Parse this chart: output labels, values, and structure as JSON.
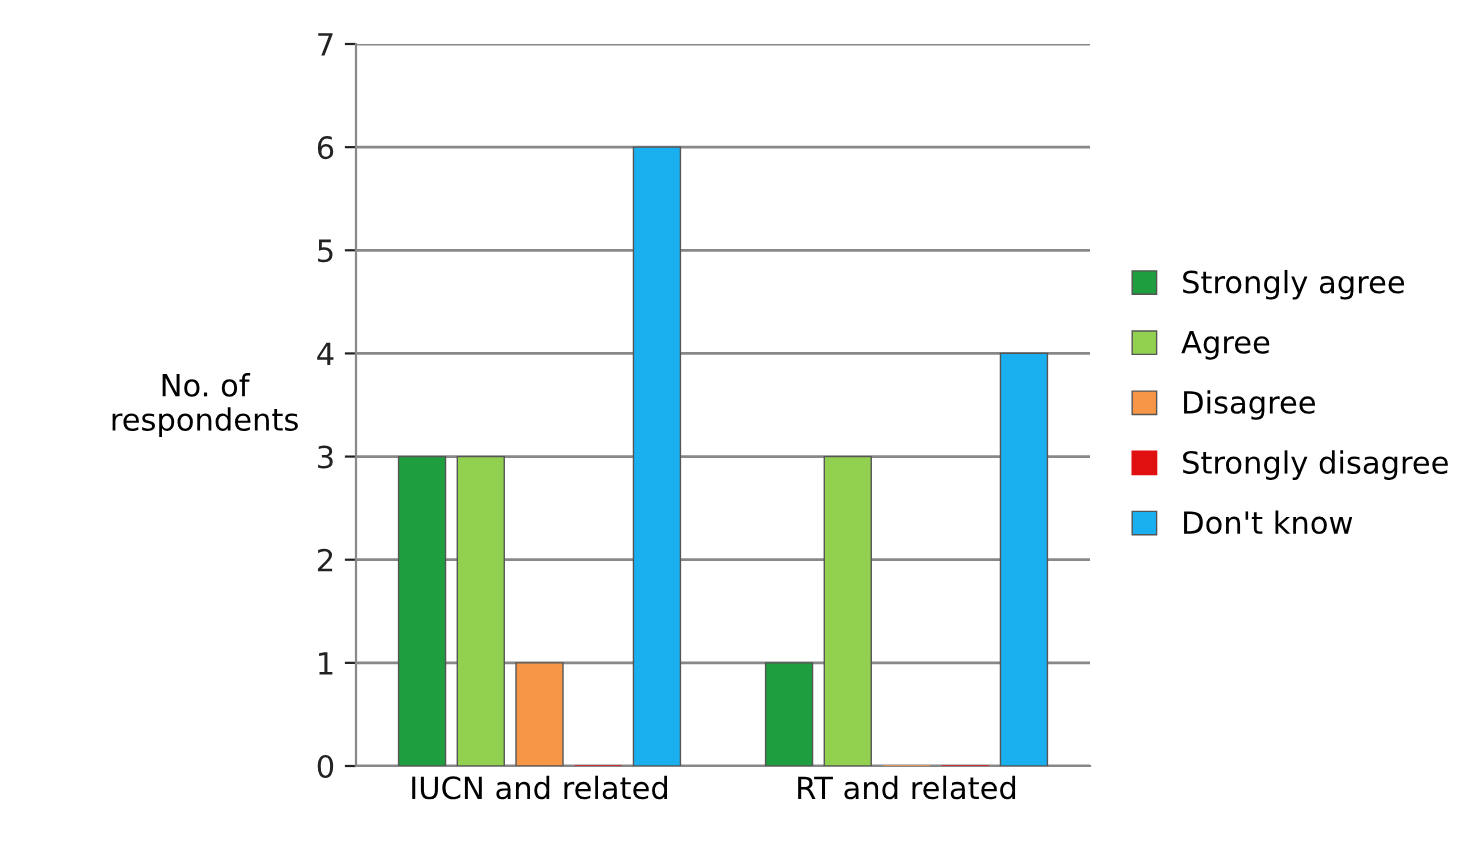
{
  "chart_data": {
    "type": "bar",
    "ylabel": "No. of\nrespondents",
    "categories": [
      "IUCN and related",
      "RT and related"
    ],
    "series": [
      {
        "name": "Strongly agree",
        "color": "#1e9e3e",
        "values": [
          3,
          1
        ]
      },
      {
        "name": "Agree",
        "color": "#92d050",
        "values": [
          3,
          3
        ]
      },
      {
        "name": "Disagree",
        "color": "#f79646",
        "values": [
          1,
          0
        ]
      },
      {
        "name": "Strongly disagree",
        "color": "#e01010",
        "values": [
          0,
          0
        ]
      },
      {
        "name": "Don't know",
        "color": "#1ab0f0",
        "values": [
          6,
          4
        ]
      }
    ],
    "ylim": [
      0,
      7
    ],
    "yticks": [
      0,
      1,
      2,
      3,
      4,
      5,
      6,
      7
    ],
    "grid": "y",
    "legend": "right"
  }
}
